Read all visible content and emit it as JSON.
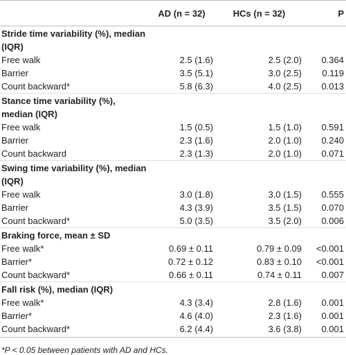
{
  "table": {
    "columns": [
      "AD (n = 32)",
      "HCs (n = 32)",
      "P"
    ],
    "sections": [
      {
        "title": "Stride time variability (%), median (IQR)",
        "rows": [
          [
            "Free walk",
            "2.5 (1.6)",
            "2.5 (2.0)",
            "0.364"
          ],
          [
            "Barrier",
            "3.5 (5.1)",
            "3.0 (2.5)",
            "0.119"
          ],
          [
            "Count backward*",
            "5.8 (6.3)",
            "4.0 (2.5)",
            "0.013"
          ]
        ]
      },
      {
        "title": "Stance time variability (%), median (IQR)",
        "rows": [
          [
            "Free walk",
            "1.5 (0.5)",
            "1.5 (1.0)",
            "0.591"
          ],
          [
            "Barrier",
            "2.3 (1.6)",
            "2.0 (1.0)",
            "0.240"
          ],
          [
            "Count backward",
            "2.3 (1.3)",
            "2.0 (1.0)",
            "0.071"
          ]
        ]
      },
      {
        "title": "Swing time variability (%), median (IQR)",
        "rows": [
          [
            "Free walk",
            "3.0 (1.8)",
            "3.0 (1.5)",
            "0.555"
          ],
          [
            "Barrier",
            "4.3 (3.9)",
            "3.5 (1.5)",
            "0.070"
          ],
          [
            "Count backward*",
            "5.0 (3.5)",
            "3.5 (2.0)",
            "0.006"
          ]
        ]
      },
      {
        "title": "Braking force, mean ± SD",
        "rows": [
          [
            "Free walk*",
            "0.69 ± 0.11",
            "0.79 ± 0.09",
            "<0.001"
          ],
          [
            "Barrier*",
            "0.72 ± 0.12",
            "0.83 ± 0.10",
            "<0.001"
          ],
          [
            "Count backward*",
            "0.66 ± 0.11",
            "0.74 ± 0.11",
            "0.007"
          ]
        ]
      },
      {
        "title": "Fall risk (%), median (IQR)",
        "rows": [
          [
            "Free walk*",
            "4.3 (3.4)",
            "2.8 (1.6)",
            "0.001"
          ],
          [
            "Barrier*",
            "4.6 (4.0)",
            "2.3 (1.6)",
            "0.001"
          ],
          [
            "Count backward*",
            "6.2 (4.4)",
            "3.6 (3.8)",
            "0.001"
          ]
        ]
      }
    ],
    "footnote": "*P < 0.05 between patients with AD and HCs."
  }
}
